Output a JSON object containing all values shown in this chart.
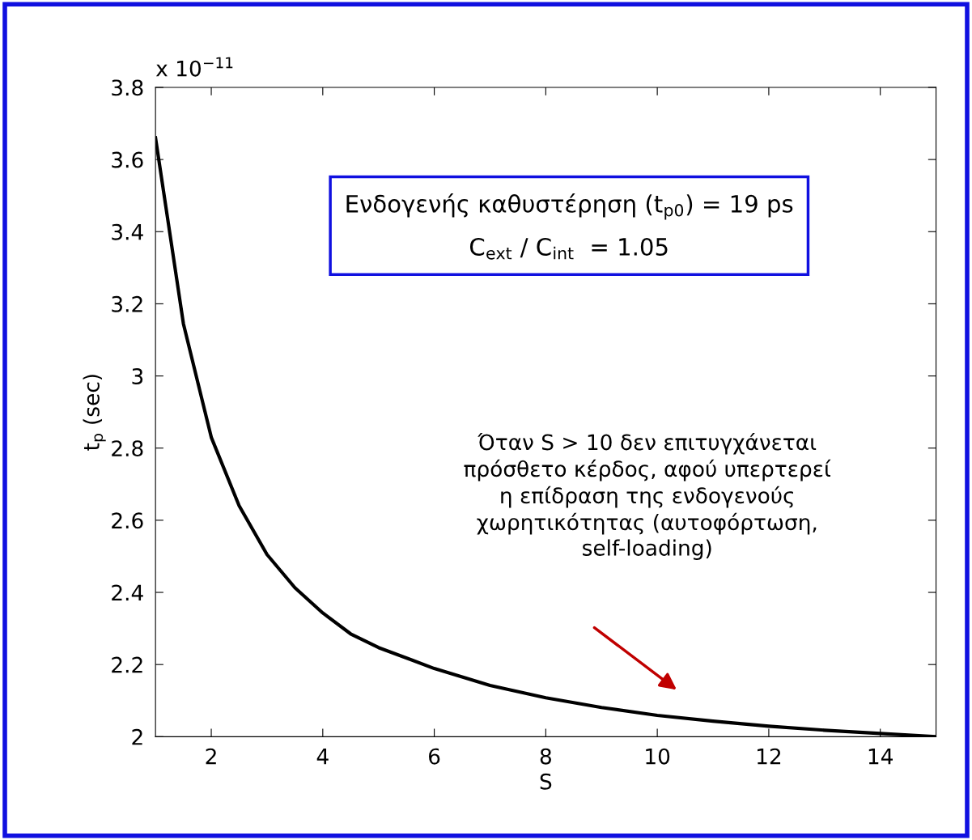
{
  "chart_data": {
    "type": "line",
    "xlabel": "S",
    "ylabel": "t$_{p}$ (sec)",
    "x": [
      1,
      1.5,
      2,
      2.5,
      3,
      3.5,
      4,
      4.5,
      5,
      6,
      7,
      8,
      9,
      10,
      11,
      12,
      13,
      14,
      15
    ],
    "series": [
      {
        "color": "#000000",
        "values": [
          3.66,
          3.145,
          2.83,
          2.64,
          2.505,
          2.413,
          2.343,
          2.285,
          2.247,
          2.189,
          2.142,
          2.108,
          2.081,
          2.059,
          2.043,
          2.029,
          2.018,
          2.009,
          2.0
        ]
      }
    ],
    "xlim": [
      1,
      15
    ],
    "xticks": [
      2,
      4,
      6,
      8,
      10,
      12,
      14
    ],
    "ylim": [
      2,
      3.8
    ],
    "yticks": [
      2,
      2.2,
      2.4,
      2.6,
      2.8,
      3,
      3.2,
      3.4,
      3.6,
      3.8
    ],
    "grid": false,
    "line_style": "solid",
    "marker": "none",
    "annotations": [
      "x 10$^{−11}$",
      "Ενδογενής καθυστέρηση (t$_{p0}$) = 19 ps\nC$_{ext}$ / C$_{int}$  = 1.05",
      "Όταν S > 10 δεν επιτυγχάνεται\nπρόσθετο κέρδος, αφού υπερτερεί\nη επίδραση της ενδογενούς\nχωρητικότητας (αυτοφόρτωση,\nself-loading)"
    ]
  }
}
